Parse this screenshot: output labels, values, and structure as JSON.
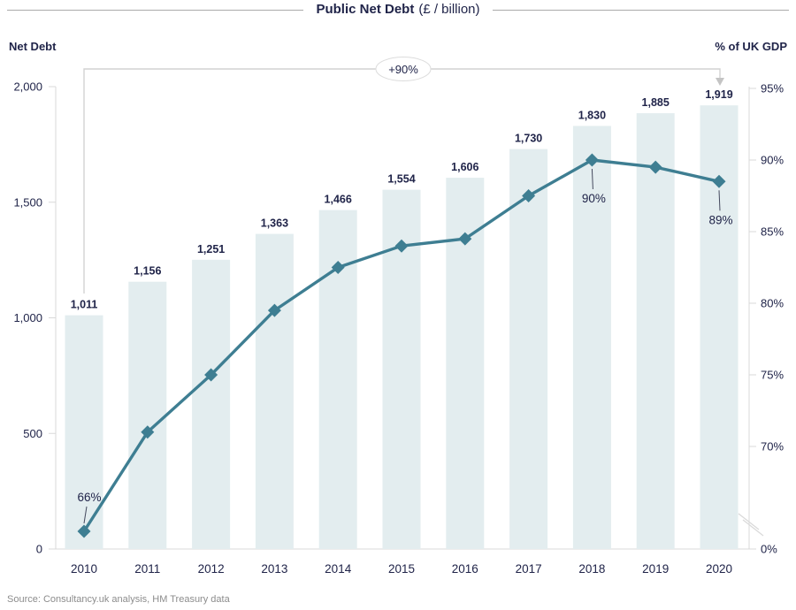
{
  "header": {
    "title_bold": "Public Net Debt",
    "title_rest": "(£ / billion)"
  },
  "axes": {
    "left_label": "Net Debt",
    "right_label": "% of UK GDP"
  },
  "annotation": {
    "bracket_label": "+90%"
  },
  "source": "Source: Consultancy.uk analysis, HM Treasury data",
  "colors": {
    "navy": "#202449",
    "teal": "#3e7e92",
    "bar_fill": "#e3edef",
    "axis_gray": "#d9d9d9",
    "rule_gray": "#ababab",
    "bracket_gray": "#d2d2d2",
    "arrow_gray": "#c4c4c4",
    "leader_dark": "#44495e",
    "source_gray": "#8c8c8c"
  },
  "chart_data": {
    "type": "bar+line combo",
    "title": "Public Net Debt (£ / billion)",
    "categories": [
      2010,
      2011,
      2012,
      2013,
      2014,
      2015,
      2016,
      2017,
      2018,
      2019,
      2020
    ],
    "series": [
      {
        "name": "Net Debt (£ billion)",
        "type": "bar",
        "axis": "left",
        "values": [
          1011,
          1156,
          1251,
          1363,
          1466,
          1554,
          1606,
          1730,
          1830,
          1885,
          1919
        ],
        "labels": [
          "1,011",
          "1,156",
          "1,251",
          "1,363",
          "1,466",
          "1,554",
          "1,606",
          "1,730",
          "1,830",
          "1,885",
          "1,919"
        ]
      },
      {
        "name": "% of UK GDP",
        "type": "line",
        "axis": "right",
        "values": [
          66,
          71,
          75,
          79.5,
          82.5,
          84,
          84.5,
          87.5,
          90,
          89.5,
          88.5
        ],
        "point_labels": [
          {
            "year": 2010,
            "text": "66%",
            "position": "above"
          },
          {
            "year": 2018,
            "text": "90%",
            "position": "below"
          },
          {
            "year": 2020,
            "text": "89%",
            "position": "below"
          }
        ]
      }
    ],
    "left_axis": {
      "title": "Net Debt",
      "range": [
        0,
        2000
      ],
      "ticks": [
        0,
        500,
        1000,
        1500,
        2000
      ],
      "tick_labels": [
        "0",
        "500",
        "1,000",
        "1,500",
        "2,000"
      ]
    },
    "right_axis": {
      "title": "% of UK GDP",
      "ticks": [
        0,
        70,
        75,
        80,
        85,
        90,
        95
      ],
      "tick_labels": [
        "0%",
        "70%",
        "75%",
        "80%",
        "85%",
        "90%",
        "95%"
      ],
      "axis_break": "between 0% and 70%"
    },
    "annotations": [
      {
        "type": "bracket-arrow",
        "text": "+90%",
        "from_year": 2010,
        "to_year": 2020
      }
    ],
    "legend": "none",
    "gridlines": "off"
  }
}
